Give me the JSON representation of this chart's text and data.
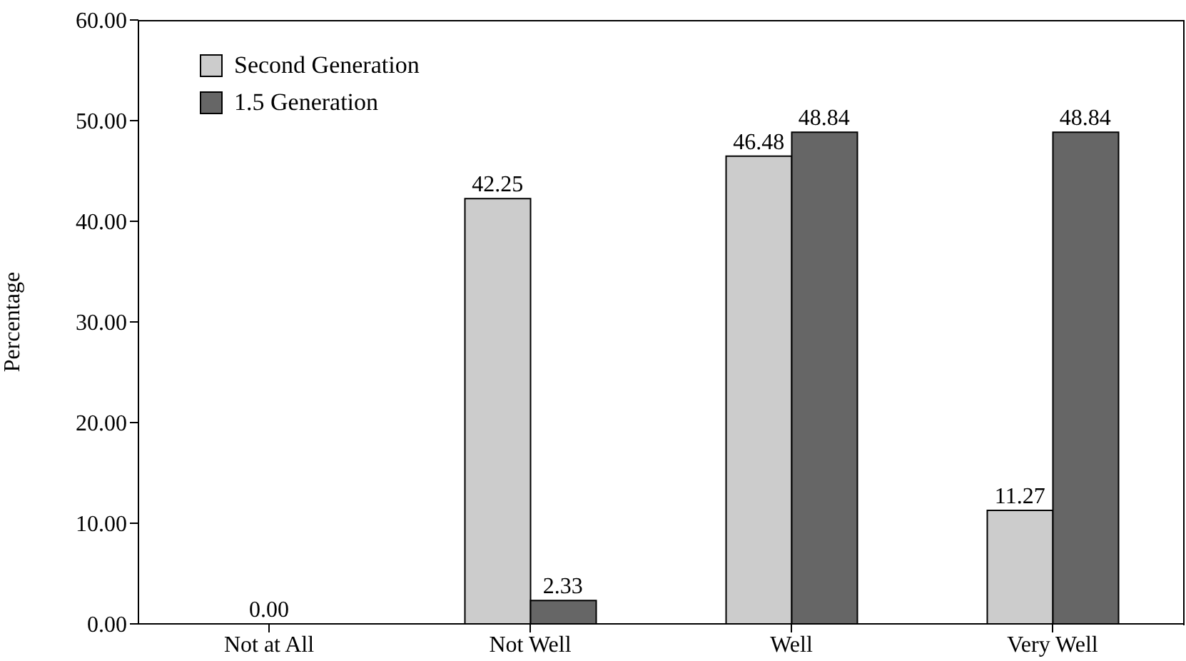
{
  "chart_data": {
    "type": "bar",
    "ylabel": "Percentage",
    "categories": [
      "Not at All",
      "Not Well",
      "Well",
      "Very Well"
    ],
    "series": [
      {
        "name": "Second Generation",
        "color": "#cccccc",
        "values": [
          0,
          42.25,
          46.48,
          11.27
        ],
        "value_labels": [
          "0.00",
          "42.25",
          "46.48",
          "11.27"
        ]
      },
      {
        "name": "1.5 Generation",
        "color": "#666666",
        "values": [
          0,
          2.33,
          48.84,
          48.84
        ],
        "value_labels": [
          null,
          "2.33",
          "48.84",
          "48.84"
        ]
      }
    ],
    "ylim": [
      0,
      60
    ],
    "yticks": [
      {
        "value": 0,
        "label": "0.00"
      },
      {
        "value": 10,
        "label": "10.00"
      },
      {
        "value": 20,
        "label": "20.00"
      },
      {
        "value": 30,
        "label": "30.00"
      },
      {
        "value": 40,
        "label": "40.00"
      },
      {
        "value": 50,
        "label": "50.00"
      },
      {
        "value": 60,
        "label": "60.00"
      }
    ],
    "grid": false,
    "legend": "top left"
  }
}
